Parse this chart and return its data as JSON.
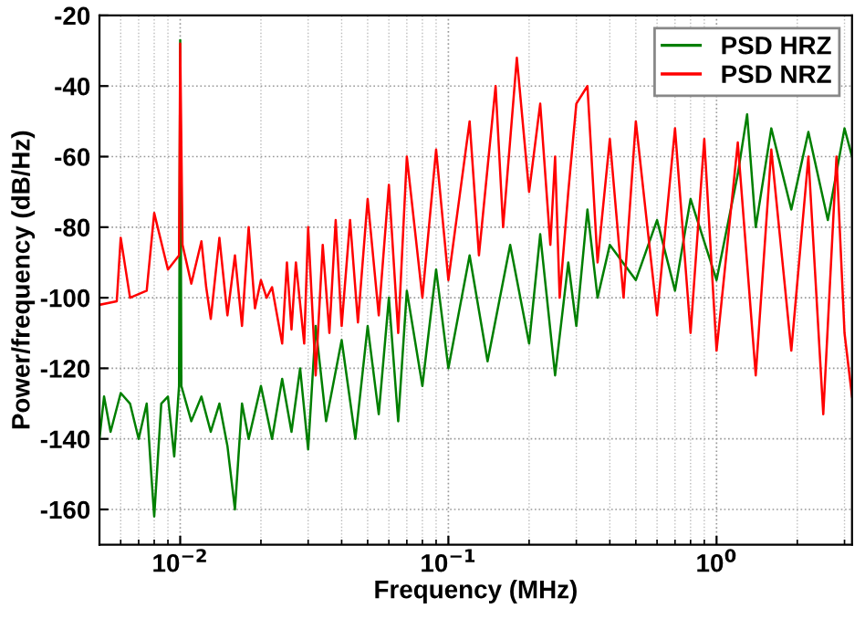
{
  "chart_data": {
    "type": "line",
    "xlabel": "Frequency (MHz)",
    "ylabel": "Power/frequency (dB/Hz)",
    "log": "x",
    "grid": true,
    "legend": "top right",
    "line_style": "solid",
    "marker": "none",
    "xlim": [
      0.005,
      3.2
    ],
    "xticks": [
      {
        "value": 0.01,
        "label": "10$^{−2}$"
      },
      {
        "value": 0.1,
        "label": "10$^{−1}$"
      },
      {
        "value": 1,
        "label": "10$^{0}$"
      }
    ],
    "ylim": [
      -170,
      -20
    ],
    "yticks": [
      -160,
      -140,
      -120,
      -100,
      -80,
      -60,
      -40,
      -20
    ],
    "series": [
      {
        "name": "PSD HRZ",
        "color": "#007f00",
        "x": [
          0.005,
          0.0052,
          0.0055,
          0.006,
          0.0065,
          0.007,
          0.0075,
          0.0078,
          0.008,
          0.0085,
          0.009,
          0.0095,
          0.0099,
          0.01,
          0.0101,
          0.011,
          0.012,
          0.013,
          0.014,
          0.015,
          0.016,
          0.017,
          0.018,
          0.02,
          0.022,
          0.024,
          0.026,
          0.028,
          0.03,
          0.032,
          0.035,
          0.04,
          0.045,
          0.05,
          0.055,
          0.06,
          0.065,
          0.07,
          0.08,
          0.09,
          0.1,
          0.12,
          0.14,
          0.17,
          0.2,
          0.22,
          0.25,
          0.28,
          0.3,
          0.33,
          0.36,
          0.4,
          0.5,
          0.6,
          0.7,
          0.8,
          1.0,
          1.2,
          1.3,
          1.4,
          1.6,
          1.9,
          2.2,
          2.6,
          3.0,
          3.2
        ],
        "values": [
          -140,
          -128,
          -138,
          -127,
          -130,
          -140,
          -130,
          -150,
          -162,
          -130,
          -128,
          -145,
          -125,
          -27,
          -125,
          -135,
          -128,
          -138,
          -130,
          -142,
          -160,
          -130,
          -140,
          -125,
          -140,
          -123,
          -138,
          -120,
          -143,
          -108,
          -135,
          -112,
          -140,
          -108,
          -133,
          -100,
          -135,
          -98,
          -125,
          -92,
          -120,
          -88,
          -118,
          -85,
          -113,
          -82,
          -122,
          -90,
          -108,
          -75,
          -100,
          -85,
          -95,
          -78,
          -98,
          -72,
          -95,
          -65,
          -48,
          -80,
          -52,
          -75,
          -53,
          -78,
          -52,
          -60
        ]
      },
      {
        "name": "PSD NRZ",
        "color": "#ff0000",
        "x": [
          0.005,
          0.0058,
          0.006,
          0.0065,
          0.0075,
          0.008,
          0.009,
          0.0099,
          0.01,
          0.0102,
          0.011,
          0.012,
          0.0125,
          0.013,
          0.014,
          0.015,
          0.016,
          0.017,
          0.018,
          0.019,
          0.02,
          0.021,
          0.022,
          0.024,
          0.025,
          0.026,
          0.027,
          0.029,
          0.03,
          0.032,
          0.034,
          0.036,
          0.038,
          0.04,
          0.043,
          0.046,
          0.05,
          0.055,
          0.06,
          0.065,
          0.07,
          0.08,
          0.09,
          0.1,
          0.12,
          0.13,
          0.15,
          0.16,
          0.18,
          0.2,
          0.22,
          0.24,
          0.25,
          0.26,
          0.28,
          0.3,
          0.33,
          0.36,
          0.4,
          0.45,
          0.5,
          0.6,
          0.7,
          0.8,
          0.9,
          1.0,
          1.2,
          1.4,
          1.6,
          1.9,
          2.2,
          2.5,
          2.8,
          3.0,
          3.2
        ],
        "values": [
          -102,
          -101,
          -83,
          -100,
          -98,
          -76,
          -92,
          -88,
          -28,
          -85,
          -96,
          -84,
          -97,
          -106,
          -83,
          -105,
          -88,
          -108,
          -80,
          -103,
          -95,
          -100,
          -97,
          -113,
          -90,
          -109,
          -90,
          -113,
          -80,
          -122,
          -85,
          -110,
          -78,
          -108,
          -78,
          -107,
          -72,
          -105,
          -68,
          -110,
          -60,
          -100,
          -58,
          -95,
          -50,
          -88,
          -40,
          -80,
          -32,
          -70,
          -45,
          -85,
          -60,
          -100,
          -70,
          -45,
          -40,
          -90,
          -55,
          -100,
          -50,
          -105,
          -52,
          -110,
          -55,
          -115,
          -56,
          -122,
          -58,
          -115,
          -60,
          -133,
          -60,
          -110,
          -128
        ]
      }
    ]
  }
}
